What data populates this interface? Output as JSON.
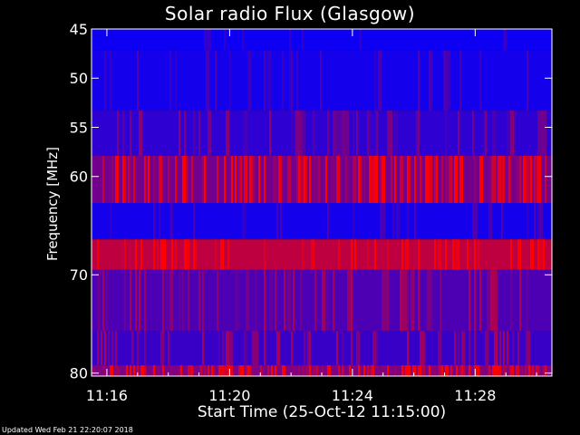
{
  "chart_data": {
    "type": "heatmap",
    "title": "Solar radio Flux (Glasgow)",
    "xlabel": "Start Time (25-Oct-12 11:15:00)",
    "ylabel": "Frequency [MHz]",
    "x_unit": "minutes from 11:15:00",
    "xlim": [
      0.5,
      15.5
    ],
    "x_ticks": [
      {
        "value": 1,
        "label": "11:16"
      },
      {
        "value": 5,
        "label": "11:20"
      },
      {
        "value": 9,
        "label": "11:24"
      },
      {
        "value": 13,
        "label": "11:28"
      }
    ],
    "ylim": [
      45,
      80.3
    ],
    "y_ticks": [
      {
        "value": 45,
        "label": "45"
      },
      {
        "value": 50,
        "label": "50"
      },
      {
        "value": 55,
        "label": "55"
      },
      {
        "value": 60,
        "label": "60"
      },
      {
        "value": 70,
        "label": "70"
      },
      {
        "value": 80,
        "label": "80"
      }
    ],
    "colormap": {
      "low": "#0000ff",
      "high": "#ff0000"
    },
    "bands": [
      {
        "freq_range": [
          45,
          47.2
        ],
        "intensity": 0.05,
        "burstiness": 0.05
      },
      {
        "freq_range": [
          47.2,
          53.3
        ],
        "intensity": 0.08,
        "burstiness": 0.15
      },
      {
        "freq_range": [
          53.3,
          57.9
        ],
        "intensity": 0.18,
        "burstiness": 0.35
      },
      {
        "freq_range": [
          57.9,
          62.7
        ],
        "intensity": 0.45,
        "burstiness": 0.75
      },
      {
        "freq_range": [
          62.7,
          66.4
        ],
        "intensity": 0.08,
        "burstiness": 0.15
      },
      {
        "freq_range": [
          66.4,
          69.5
        ],
        "intensity": 0.75,
        "burstiness": 0.35
      },
      {
        "freq_range": [
          69.5,
          75.7
        ],
        "intensity": 0.3,
        "burstiness": 0.35
      },
      {
        "freq_range": [
          75.7,
          79.2
        ],
        "intensity": 0.22,
        "burstiness": 0.45
      },
      {
        "freq_range": [
          79.2,
          80.3
        ],
        "intensity": 0.5,
        "burstiness": 0.8
      }
    ]
  },
  "footer": "Updated Wed Feb 21 22:20:07 2018"
}
